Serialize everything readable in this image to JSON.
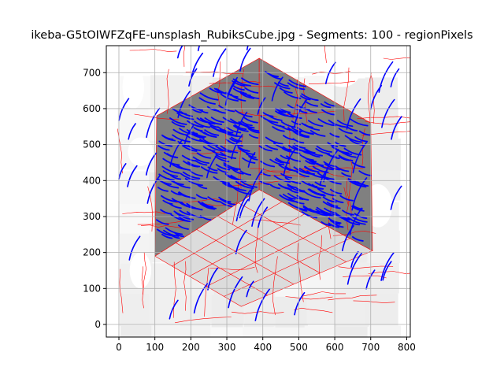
{
  "chart_data": {
    "type": "image",
    "title": "ikeba-G5tOIWFZqFE-unsplash_RubiksCube.jpg - Segments: 100 - regionPixels",
    "xlim": [
      -35,
      810
    ],
    "ylim": [
      775,
      -35
    ],
    "x_ticks": [
      0,
      100,
      200,
      300,
      400,
      500,
      600,
      700,
      800
    ],
    "y_ticks": [
      0,
      100,
      200,
      300,
      400,
      500,
      600,
      700
    ],
    "grid": true,
    "image_extent": {
      "x": [
        0,
        775
      ],
      "y": [
        0,
        775
      ]
    },
    "colors": {
      "background_cells": "#f2f2f2",
      "top_face": "#dcdcdc",
      "side_faces": "#808080",
      "segment_boundaries": "#ff0000",
      "overlay_strokes": "#0000ff",
      "grid": "#b0b0b0"
    },
    "cube": {
      "top_face": [
        [
          100,
          190
        ],
        [
          340,
          50
        ],
        [
          705,
          205
        ],
        [
          390,
          375
        ]
      ],
      "left_face": [
        [
          100,
          190
        ],
        [
          390,
          375
        ],
        [
          390,
          740
        ],
        [
          105,
          580
        ]
      ],
      "right_face": [
        [
          390,
          375
        ],
        [
          705,
          205
        ],
        [
          700,
          560
        ],
        [
          390,
          740
        ]
      ]
    }
  }
}
